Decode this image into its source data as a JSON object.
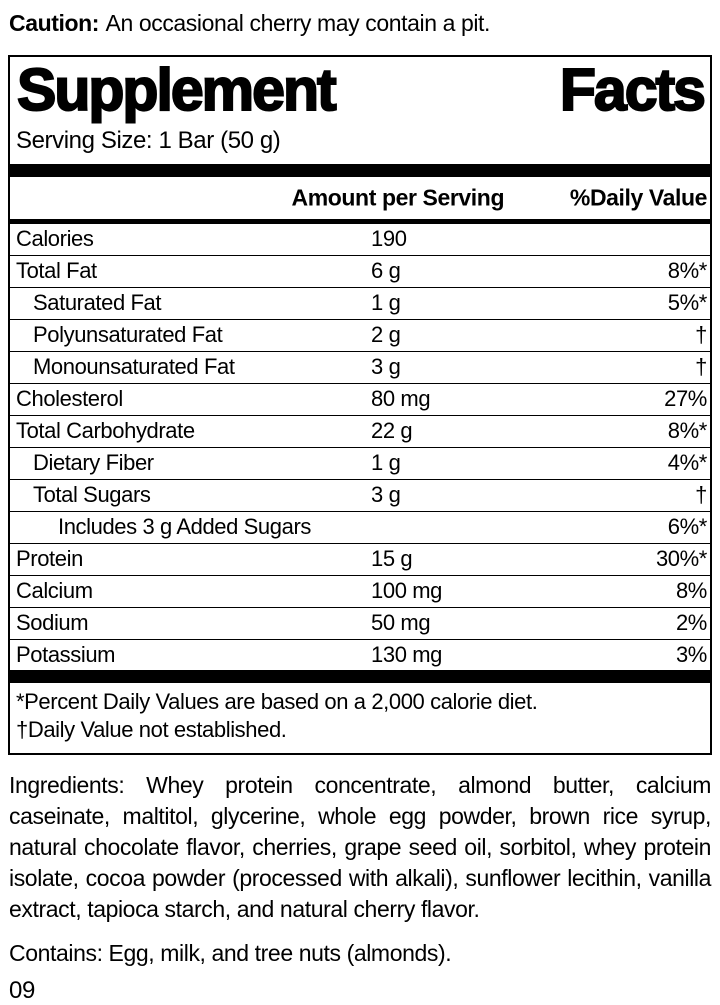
{
  "caution": {
    "label": "Caution:",
    "text": "An occasional cherry may contain a pit."
  },
  "panel": {
    "title_word1": "Supplement",
    "title_word2": "Facts",
    "serving_size": "Serving Size: 1 Bar (50 g)",
    "header": {
      "amount": "Amount per Serving",
      "dv": "%Daily Value"
    },
    "rows": [
      {
        "name": "Calories",
        "amount": "190",
        "dv": "",
        "indent": 0
      },
      {
        "name": "Total Fat",
        "amount": "6 g",
        "dv": "8%*",
        "indent": 0
      },
      {
        "name": "Saturated Fat",
        "amount": "1 g",
        "dv": "5%*",
        "indent": 1
      },
      {
        "name": "Polyunsaturated Fat",
        "amount": "2 g",
        "dv": "†",
        "indent": 1
      },
      {
        "name": "Monounsaturated Fat",
        "amount": "3 g",
        "dv": "†",
        "indent": 1
      },
      {
        "name": "Cholesterol",
        "amount": "80 mg",
        "dv": "27%",
        "indent": 0
      },
      {
        "name": "Total Carbohydrate",
        "amount": "22 g",
        "dv": "8%*",
        "indent": 0
      },
      {
        "name": "Dietary Fiber",
        "amount": "1 g",
        "dv": "4%*",
        "indent": 1
      },
      {
        "name": "Total Sugars",
        "amount": "3 g",
        "dv": "†",
        "indent": 1
      },
      {
        "name": "Includes 3 g Added Sugars",
        "amount": "",
        "dv": "6%*",
        "indent": 2
      },
      {
        "name": "Protein",
        "amount": "15 g",
        "dv": "30%*",
        "indent": 0
      },
      {
        "name": "Calcium",
        "amount": "100 mg",
        "dv": "8%",
        "indent": 0
      },
      {
        "name": "Sodium",
        "amount": "50 mg",
        "dv": "2%",
        "indent": 0
      },
      {
        "name": "Potassium",
        "amount": "130 mg",
        "dv": "3%",
        "indent": 0
      }
    ],
    "footnotes": [
      "*Percent Daily Values are based on a 2,000 calorie diet.",
      "†Daily Value not established."
    ]
  },
  "ingredients": "Ingredients: Whey protein concentrate, almond butter, calcium caseinate, maltitol, glycerine, whole egg powder, brown rice syrup, natural chocolate flavor, cherries, grape seed oil, sorbitol, whey protein isolate, cocoa powder (processed with alkali), sunflower lecithin, vanilla extract, tapioca starch, and natural cherry flavor.",
  "contains": "Contains: Egg, milk, and tree nuts (almonds).",
  "code": "09",
  "colors": {
    "text": "#000000",
    "background": "#ffffff"
  }
}
